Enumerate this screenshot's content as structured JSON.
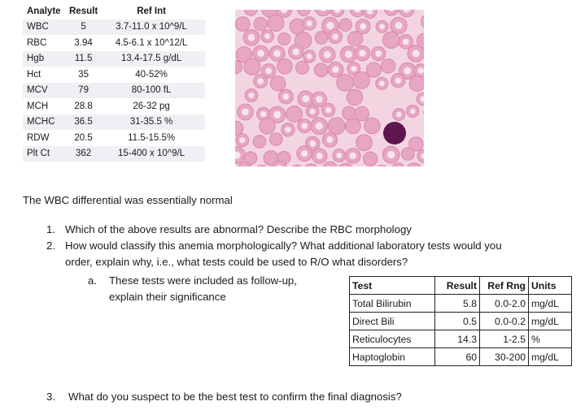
{
  "cbc": {
    "headers": [
      "Analyte",
      "Result",
      "Ref Int"
    ],
    "rows": [
      [
        "WBC",
        "5",
        "3.7-11.0 x 10^9/L"
      ],
      [
        "RBC",
        "3.94",
        "4.5-6.1 x 10^12/L"
      ],
      [
        "Hgb",
        "11.5",
        "13.4-17.5 g/dL"
      ],
      [
        "Hct",
        "35",
        "40-52%"
      ],
      [
        "MCV",
        "79",
        "80-100 fL"
      ],
      [
        "MCH",
        "28.8",
        "26-32 pg"
      ],
      [
        "MCHC",
        "36.5",
        "31-35.5 %"
      ],
      [
        "RDW",
        "20.5",
        "11.5-15.5%"
      ],
      [
        "Plt Ct",
        "362",
        "15-400 x 10^9/L"
      ]
    ]
  },
  "smear": {
    "background": "#f3d5e2",
    "cell_color": "#e7a6c3",
    "cell_rim_color": "#d889ab",
    "lymphocyte_color": "#5e1650"
  },
  "wbc_note": "The WBC differential was essentially normal",
  "questions": {
    "q1_num": "1.",
    "q1_text": "Which of the above results are abnormal? Describe the RBC morphology",
    "q2_num": "2.",
    "q2_text_line1": "How would classify this anemia morphologically? What additional laboratory tests would you",
    "q2_text_line2": "order, explain why, i.e., what tests could be used to R/O what disorders?",
    "q2a_num": "a.",
    "q2a_line1": "These tests were included as follow-up,",
    "q2a_line2": "explain their significance",
    "q3_num": "3.",
    "q3_text": "What do you suspect to be the best test to confirm the final diagnosis?"
  },
  "lab": {
    "headers": [
      "Test",
      "Result",
      "Ref Rng",
      "Units"
    ],
    "rows": [
      [
        "Total Bilirubin",
        "5.8",
        "0.0-2.0",
        "mg/dL"
      ],
      [
        "Direct Bili",
        "0.5",
        "0.0-0.2",
        "mg/dL"
      ],
      [
        "Reticulocytes",
        "14.3",
        "1-2.5",
        "%"
      ],
      [
        "Haptoglobin",
        "60",
        "30-200",
        "mg/dL"
      ]
    ]
  }
}
